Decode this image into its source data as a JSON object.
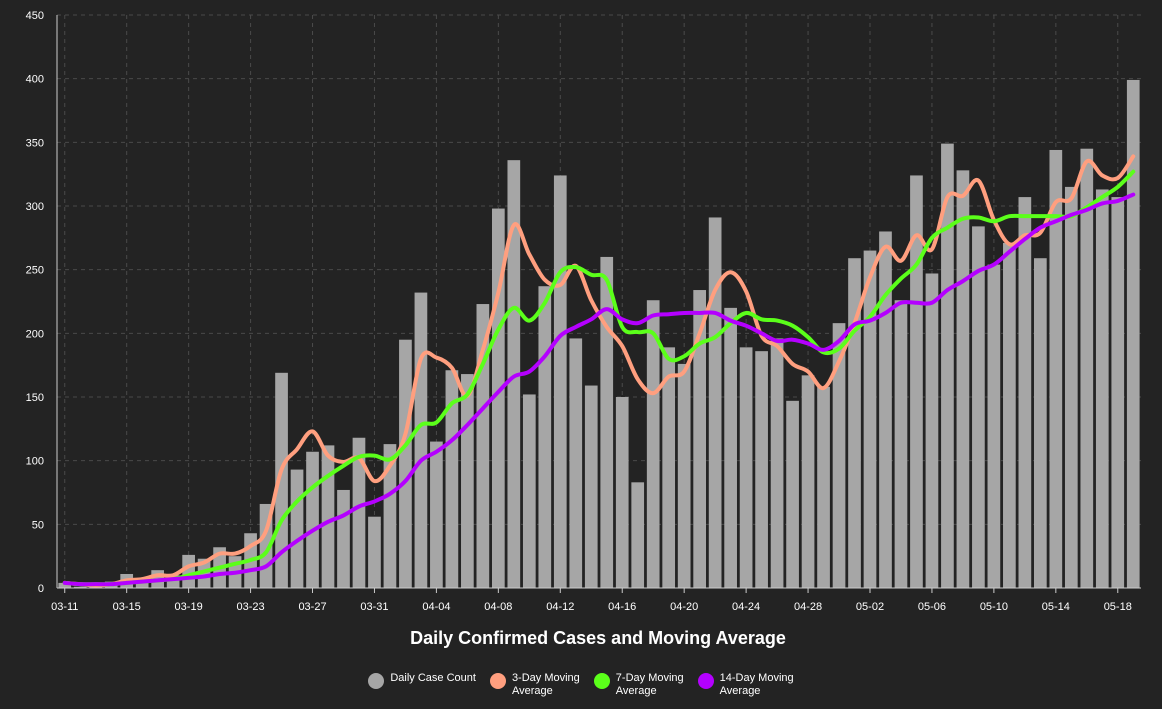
{
  "chart_data": {
    "type": "bar",
    "title": "Daily Confirmed Cases and Moving Average",
    "xlabel": "",
    "ylabel": "",
    "ylim": [
      0,
      450
    ],
    "yticks": [
      0,
      50,
      100,
      150,
      200,
      250,
      300,
      350,
      400,
      450
    ],
    "grid": true,
    "legend_position": "bottom",
    "x_tick_labels": [
      "03-11",
      "03-15",
      "03-19",
      "03-23",
      "03-27",
      "03-31",
      "04-04",
      "04-08",
      "04-12",
      "04-16",
      "04-20",
      "04-24",
      "04-28",
      "05-02",
      "05-06",
      "05-10",
      "05-14",
      "05-18"
    ],
    "x_tick_every": 4,
    "categories": [
      "03-11",
      "03-12",
      "03-13",
      "03-14",
      "03-15",
      "03-16",
      "03-17",
      "03-18",
      "03-19",
      "03-20",
      "03-21",
      "03-22",
      "03-23",
      "03-24",
      "03-25",
      "03-26",
      "03-27",
      "03-28",
      "03-29",
      "03-30",
      "03-31",
      "04-01",
      "04-02",
      "04-03",
      "04-04",
      "04-05",
      "04-06",
      "04-07",
      "04-08",
      "04-09",
      "04-10",
      "04-11",
      "04-12",
      "04-13",
      "04-14",
      "04-15",
      "04-16",
      "04-17",
      "04-18",
      "04-19",
      "04-20",
      "04-21",
      "04-22",
      "04-23",
      "04-24",
      "04-25",
      "04-26",
      "04-27",
      "04-28",
      "04-29",
      "04-30",
      "05-01",
      "05-02",
      "05-03",
      "05-04",
      "05-05",
      "05-06",
      "05-07",
      "05-08",
      "05-09",
      "05-10",
      "05-11",
      "05-12",
      "05-13",
      "05-14",
      "05-15",
      "05-16",
      "05-17",
      "05-18",
      "05-19"
    ],
    "series": [
      {
        "name": "Daily Case Count",
        "kind": "bar",
        "color": "#a6a6a6",
        "values": [
          4,
          1,
          2,
          5,
          11,
          5,
          14,
          10,
          26,
          23,
          32,
          25,
          43,
          66,
          169,
          93,
          107,
          112,
          77,
          118,
          56,
          113,
          195,
          232,
          115,
          171,
          168,
          223,
          298,
          336,
          152,
          237,
          324,
          196,
          159,
          260,
          150,
          83,
          226,
          189,
          176,
          234,
          291,
          220,
          189,
          186,
          196,
          147,
          167,
          158,
          208,
          259,
          265,
          280,
          226,
          324,
          247,
          349,
          328,
          284,
          254,
          271,
          307,
          259,
          344,
          315,
          345,
          313,
          307,
          399
        ]
      },
      {
        "name": "3-Day Moving Average",
        "kind": "line",
        "color": "#ff9f7f",
        "values": [
          4,
          3,
          2,
          3,
          6,
          7,
          10,
          10,
          17,
          20,
          27,
          27,
          33,
          45,
          93,
          109,
          123,
          104,
          99,
          102,
          84,
          96,
          121,
          180,
          181,
          173,
          151,
          187,
          232,
          285,
          262,
          242,
          238,
          253,
          226,
          205,
          190,
          164,
          153,
          166,
          170,
          200,
          234,
          248,
          233,
          198,
          190,
          176,
          170,
          157,
          178,
          208,
          244,
          268,
          257,
          277,
          266,
          307,
          308,
          320,
          289,
          270,
          277,
          279,
          303,
          306,
          335,
          324,
          322,
          339
        ]
      },
      {
        "name": "7-Day Moving Average",
        "kind": "line",
        "color": "#5bff1a",
        "values": [
          4,
          3,
          3,
          3,
          4,
          5,
          6,
          7,
          10,
          13,
          16,
          19,
          22,
          28,
          53,
          68,
          79,
          88,
          96,
          103,
          104,
          101,
          112,
          128,
          130,
          145,
          152,
          176,
          203,
          220,
          210,
          224,
          248,
          252,
          246,
          242,
          205,
          201,
          200,
          180,
          182,
          192,
          197,
          208,
          216,
          211,
          210,
          206,
          197,
          185,
          188,
          202,
          213,
          230,
          243,
          254,
          275,
          283,
          290,
          291,
          288,
          292,
          292,
          292,
          292,
          292,
          299,
          307,
          315,
          327
        ]
      },
      {
        "name": "14-Day Moving Average",
        "kind": "line",
        "color": "#b400ff",
        "values": [
          4,
          3,
          3,
          3,
          4,
          5,
          6,
          7,
          8,
          9,
          11,
          12,
          14,
          17,
          28,
          37,
          45,
          52,
          57,
          64,
          68,
          74,
          84,
          100,
          107,
          116,
          128,
          141,
          154,
          166,
          170,
          182,
          198,
          205,
          211,
          219,
          211,
          208,
          214,
          215,
          216,
          216,
          216,
          210,
          206,
          200,
          194,
          195,
          192,
          187,
          194,
          207,
          210,
          216,
          224,
          224,
          224,
          234,
          241,
          249,
          254,
          264,
          274,
          283,
          288,
          293,
          297,
          302,
          304,
          309
        ]
      }
    ]
  },
  "legend": {
    "items": [
      {
        "label": "Daily Case Count",
        "color": "#a6a6a6"
      },
      {
        "label": "3-Day Moving\nAverage",
        "color": "#ff9f7f"
      },
      {
        "label": "7-Day Moving\nAverage",
        "color": "#5bff1a"
      },
      {
        "label": "14-Day Moving\nAverage",
        "color": "#b400ff"
      }
    ]
  }
}
